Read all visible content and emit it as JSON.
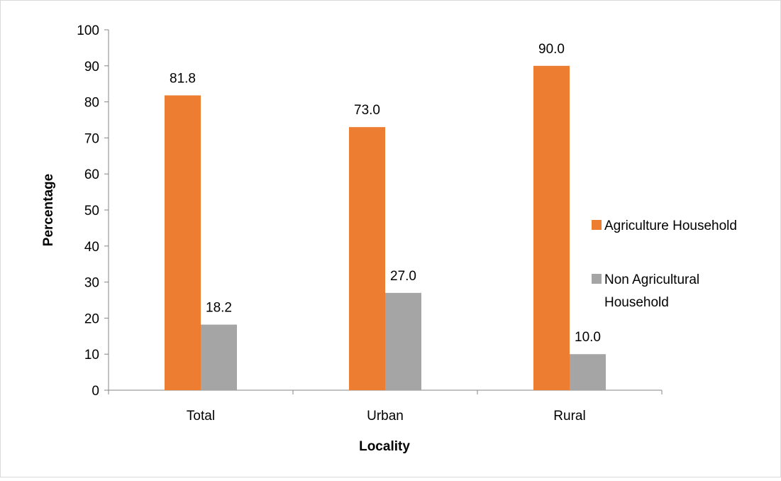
{
  "chart_data": {
    "type": "bar",
    "title": "",
    "xlabel": "Locality",
    "ylabel": "Percentage",
    "categories": [
      "Total",
      "Urban",
      "Rural"
    ],
    "series": [
      {
        "name": "Agriculture Household",
        "values": [
          81.8,
          73.0,
          90.0
        ],
        "labels": [
          "81.8",
          "73.0",
          "90.0"
        ],
        "color": "#ED7D31"
      },
      {
        "name": "Non Agricultural Household",
        "values": [
          18.2,
          27.0,
          10.0
        ],
        "labels": [
          "18.2",
          "27.0",
          "10.0"
        ],
        "color": "#A5A5A5"
      }
    ],
    "ylim": [
      0,
      100
    ],
    "yticks": [
      0,
      10,
      20,
      30,
      40,
      50,
      60,
      70,
      80,
      90,
      100
    ],
    "grid": false,
    "legend_position": "right"
  }
}
